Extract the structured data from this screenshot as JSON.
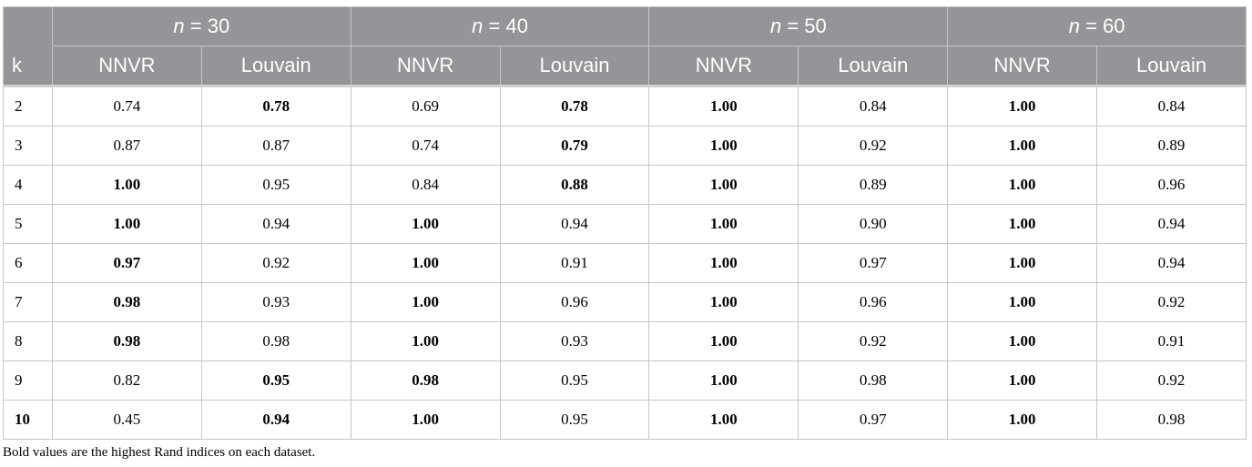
{
  "table": {
    "groups": [
      {
        "var": "n",
        "rest": " = 30"
      },
      {
        "var": "n",
        "rest": " = 40"
      },
      {
        "var": "n",
        "rest": " = 50"
      },
      {
        "var": "n",
        "rest": " = 60"
      }
    ],
    "k_header": "k",
    "method_headers": [
      "NNVR",
      "Louvain",
      "NNVR",
      "Louvain",
      "NNVR",
      "Louvain",
      "NNVR",
      "Louvain"
    ],
    "rows": [
      {
        "k": "2",
        "k_bold": false,
        "cells": [
          {
            "v": "0.74",
            "b": false
          },
          {
            "v": "0.78",
            "b": true
          },
          {
            "v": "0.69",
            "b": false
          },
          {
            "v": "0.78",
            "b": true
          },
          {
            "v": "1.00",
            "b": true
          },
          {
            "v": "0.84",
            "b": false
          },
          {
            "v": "1.00",
            "b": true
          },
          {
            "v": "0.84",
            "b": false
          }
        ]
      },
      {
        "k": "3",
        "k_bold": false,
        "cells": [
          {
            "v": "0.87",
            "b": false
          },
          {
            "v": "0.87",
            "b": false
          },
          {
            "v": "0.74",
            "b": false
          },
          {
            "v": "0.79",
            "b": true
          },
          {
            "v": "1.00",
            "b": true
          },
          {
            "v": "0.92",
            "b": false
          },
          {
            "v": "1.00",
            "b": true
          },
          {
            "v": "0.89",
            "b": false
          }
        ]
      },
      {
        "k": "4",
        "k_bold": false,
        "cells": [
          {
            "v": "1.00",
            "b": true
          },
          {
            "v": "0.95",
            "b": false
          },
          {
            "v": "0.84",
            "b": false
          },
          {
            "v": "0.88",
            "b": true
          },
          {
            "v": "1.00",
            "b": true
          },
          {
            "v": "0.89",
            "b": false
          },
          {
            "v": "1.00",
            "b": true
          },
          {
            "v": "0.96",
            "b": false
          }
        ]
      },
      {
        "k": "5",
        "k_bold": false,
        "cells": [
          {
            "v": "1.00",
            "b": true
          },
          {
            "v": "0.94",
            "b": false
          },
          {
            "v": "1.00",
            "b": true
          },
          {
            "v": "0.94",
            "b": false
          },
          {
            "v": "1.00",
            "b": true
          },
          {
            "v": "0.90",
            "b": false
          },
          {
            "v": "1.00",
            "b": true
          },
          {
            "v": "0.94",
            "b": false
          }
        ]
      },
      {
        "k": "6",
        "k_bold": false,
        "cells": [
          {
            "v": "0.97",
            "b": true
          },
          {
            "v": "0.92",
            "b": false
          },
          {
            "v": "1.00",
            "b": true
          },
          {
            "v": "0.91",
            "b": false
          },
          {
            "v": "1.00",
            "b": true
          },
          {
            "v": "0.97",
            "b": false
          },
          {
            "v": "1.00",
            "b": true
          },
          {
            "v": "0.94",
            "b": false
          }
        ]
      },
      {
        "k": "7",
        "k_bold": false,
        "cells": [
          {
            "v": "0.98",
            "b": true
          },
          {
            "v": "0.93",
            "b": false
          },
          {
            "v": "1.00",
            "b": true
          },
          {
            "v": "0.96",
            "b": false
          },
          {
            "v": "1.00",
            "b": true
          },
          {
            "v": "0.96",
            "b": false
          },
          {
            "v": "1.00",
            "b": true
          },
          {
            "v": "0.92",
            "b": false
          }
        ]
      },
      {
        "k": "8",
        "k_bold": false,
        "cells": [
          {
            "v": "0.98",
            "b": true
          },
          {
            "v": "0.98",
            "b": false
          },
          {
            "v": "1.00",
            "b": true
          },
          {
            "v": "0.93",
            "b": false
          },
          {
            "v": "1.00",
            "b": true
          },
          {
            "v": "0.92",
            "b": false
          },
          {
            "v": "1.00",
            "b": true
          },
          {
            "v": "0.91",
            "b": false
          }
        ]
      },
      {
        "k": "9",
        "k_bold": false,
        "cells": [
          {
            "v": "0.82",
            "b": false
          },
          {
            "v": "0.95",
            "b": true
          },
          {
            "v": "0.98",
            "b": true
          },
          {
            "v": "0.95",
            "b": false
          },
          {
            "v": "1.00",
            "b": true
          },
          {
            "v": "0.98",
            "b": false
          },
          {
            "v": "1.00",
            "b": true
          },
          {
            "v": "0.92",
            "b": false
          }
        ]
      },
      {
        "k": "10",
        "k_bold": true,
        "cells": [
          {
            "v": "0.45",
            "b": false
          },
          {
            "v": "0.94",
            "b": true
          },
          {
            "v": "1.00",
            "b": true
          },
          {
            "v": "0.95",
            "b": false
          },
          {
            "v": "1.00",
            "b": true
          },
          {
            "v": "0.97",
            "b": false
          },
          {
            "v": "1.00",
            "b": true
          },
          {
            "v": "0.98",
            "b": false
          }
        ]
      }
    ]
  },
  "footnote": "Bold values are the highest Rand indices on each dataset."
}
